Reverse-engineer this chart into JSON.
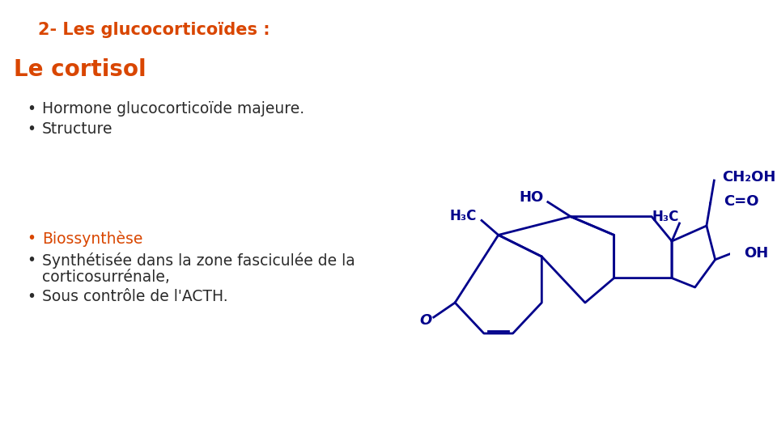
{
  "title": "2- Les glucocorticoïdes :",
  "subtitle": "Le cortisol",
  "bullet1": "Hormone glucocorticoïde majeure.",
  "bullet2": "Structure",
  "bullet3": "Biossynthèse",
  "bullet4a": "Synthétisée dans la zone fasciculée de la",
  "bullet4b": "corticosurrénale,",
  "bullet5": "Sous contrôle de l'ACTH.",
  "biosynthese_label": "Biossynthèse",
  "color_orange": "#D94600",
  "color_black": "#2B2B2B",
  "color_bg": "#FFFFFF",
  "mol_color": "#00008B",
  "title_fontsize": 15,
  "subtitle_fontsize": 20,
  "bullet_fontsize": 13.5
}
